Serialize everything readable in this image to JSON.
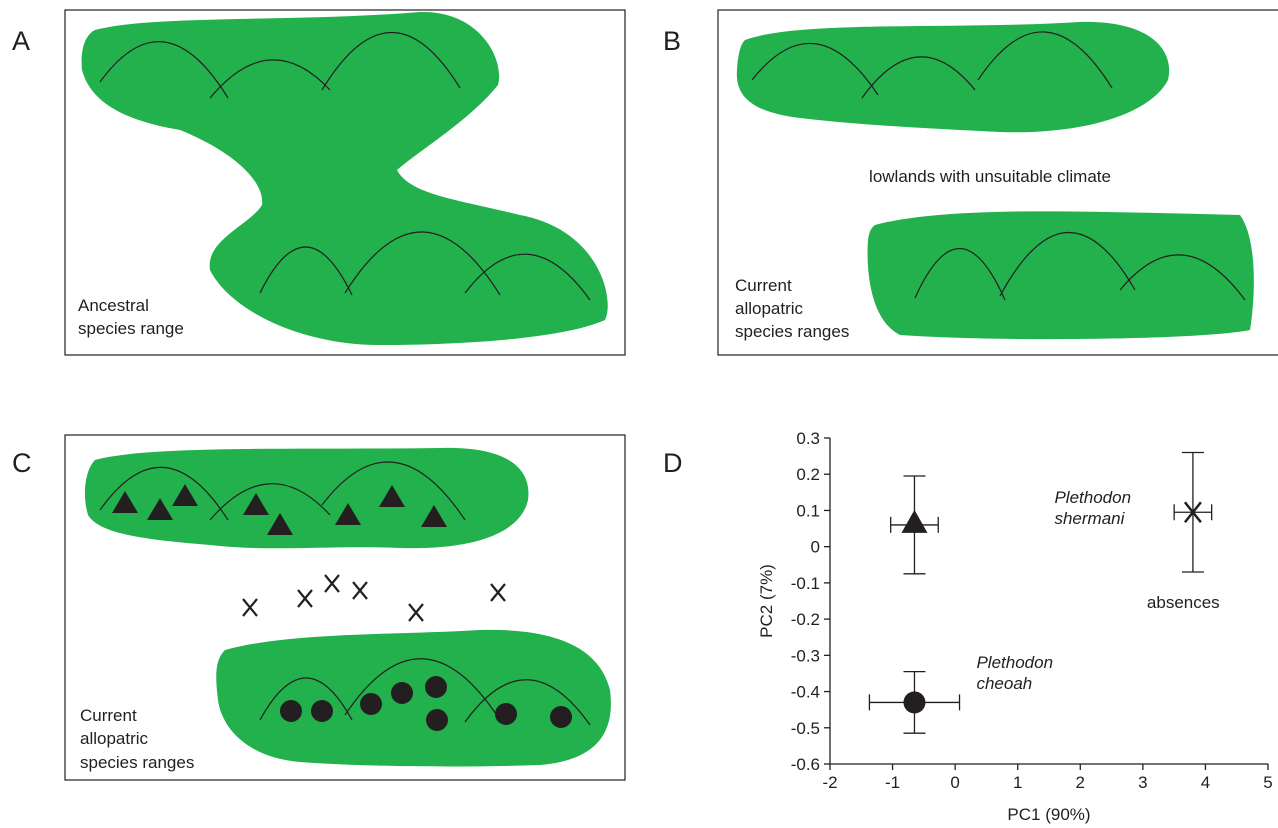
{
  "panels": {
    "A": {
      "letter": "A",
      "caption": [
        "Ancestral",
        "species range"
      ]
    },
    "B": {
      "letter": "B",
      "note": "lowlands with unsuitable climate",
      "caption": [
        "Current",
        "allopatric",
        "species ranges"
      ]
    },
    "C": {
      "letter": "C",
      "caption": [
        "Current",
        "allopatric",
        "species ranges"
      ]
    },
    "D": {
      "letter": "D"
    }
  },
  "chart_data": {
    "type": "scatter",
    "x_label": "PC1 (90%)",
    "y_label": "PC2 (7%)",
    "xlim": [
      -2,
      5
    ],
    "xticks": [
      -2,
      -1,
      0,
      1,
      2,
      3,
      4,
      5
    ],
    "ylim": [
      -0.6,
      0.3
    ],
    "yticks": [
      0.3,
      0.2,
      0.1,
      0,
      -0.1,
      -0.2,
      -0.3,
      -0.4,
      -0.5,
      -0.6
    ],
    "color": "#231f20",
    "series": [
      {
        "name": "Plethodon shermani",
        "marker": "triangle",
        "italic": true,
        "x": -0.65,
        "y": 0.06,
        "xerr": 0.38,
        "yerr": 0.135
      },
      {
        "name": "absences",
        "marker": "x",
        "italic": false,
        "x": 3.8,
        "y": 0.095,
        "xerr": 0.3,
        "yerr": 0.165
      },
      {
        "name": "Plethodon cheoah",
        "marker": "circle",
        "italic": false,
        "x": -0.65,
        "y": -0.43,
        "xerr": 0.72,
        "yerr": 0.085
      }
    ]
  }
}
